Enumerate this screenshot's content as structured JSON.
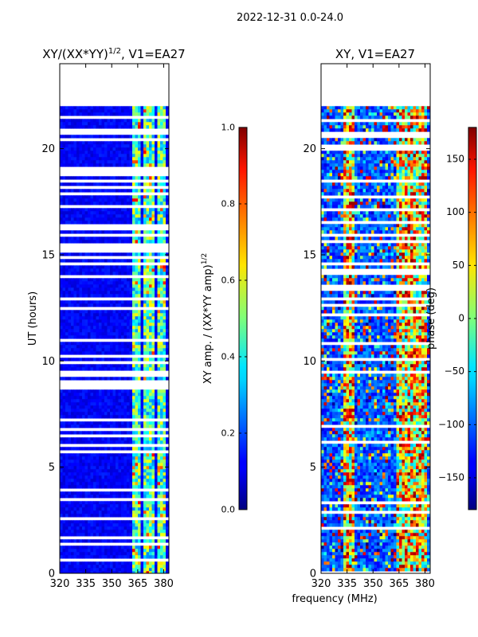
{
  "suptitle": "2022-12-31 0.0-24.0",
  "xlabel_shared": "frequency (MHz)",
  "chart_data": [
    {
      "type": "heatmap",
      "title_main": "XY/(XX*YY)",
      "title_sup": "1/2",
      "title_rest": ", V1=EA27",
      "ylabel": "UT (hours)",
      "xlim": [
        320,
        383
      ],
      "ylim": [
        0,
        24
      ],
      "xticks": [
        320,
        335,
        350,
        365,
        380
      ],
      "xtick_labels": [
        "320",
        "335",
        "350",
        "365",
        "380"
      ],
      "yticks": [
        0,
        5,
        10,
        15,
        20
      ],
      "ytick_labels": [
        "0",
        "5",
        "10",
        "15",
        "20"
      ],
      "data_extent_hours": [
        0,
        22
      ],
      "colorscale": "jet",
      "colorbar": {
        "label_main": "XY amp. / (XX*YY amp)",
        "label_sup": "1/2",
        "vmin": 0.0,
        "vmax": 1.0,
        "ticks": [
          0.0,
          0.2,
          0.4,
          0.6,
          0.8,
          1.0
        ],
        "tick_labels": [
          "0.0",
          "0.2",
          "0.4",
          "0.6",
          "0.8",
          "1.0"
        ]
      }
    },
    {
      "type": "heatmap",
      "title": "XY, V1=EA27",
      "xlim": [
        320,
        383
      ],
      "ylim": [
        0,
        24
      ],
      "xticks": [
        320,
        335,
        350,
        365,
        380
      ],
      "xtick_labels": [
        "320",
        "335",
        "350",
        "365",
        "380"
      ],
      "yticks": [
        0,
        5,
        10,
        15,
        20
      ],
      "ytick_labels": [
        "0",
        "5",
        "10",
        "15",
        "20"
      ],
      "data_extent_hours": [
        0,
        22
      ],
      "colorscale": "jet",
      "colorbar": {
        "label": "phase (deg)",
        "vmin": -180,
        "vmax": 180,
        "ticks": [
          -150,
          -100,
          -50,
          0,
          50,
          100,
          150
        ],
        "tick_labels": [
          "−150",
          "−100",
          "−50",
          "0",
          "50",
          "100",
          "150"
        ]
      }
    }
  ]
}
